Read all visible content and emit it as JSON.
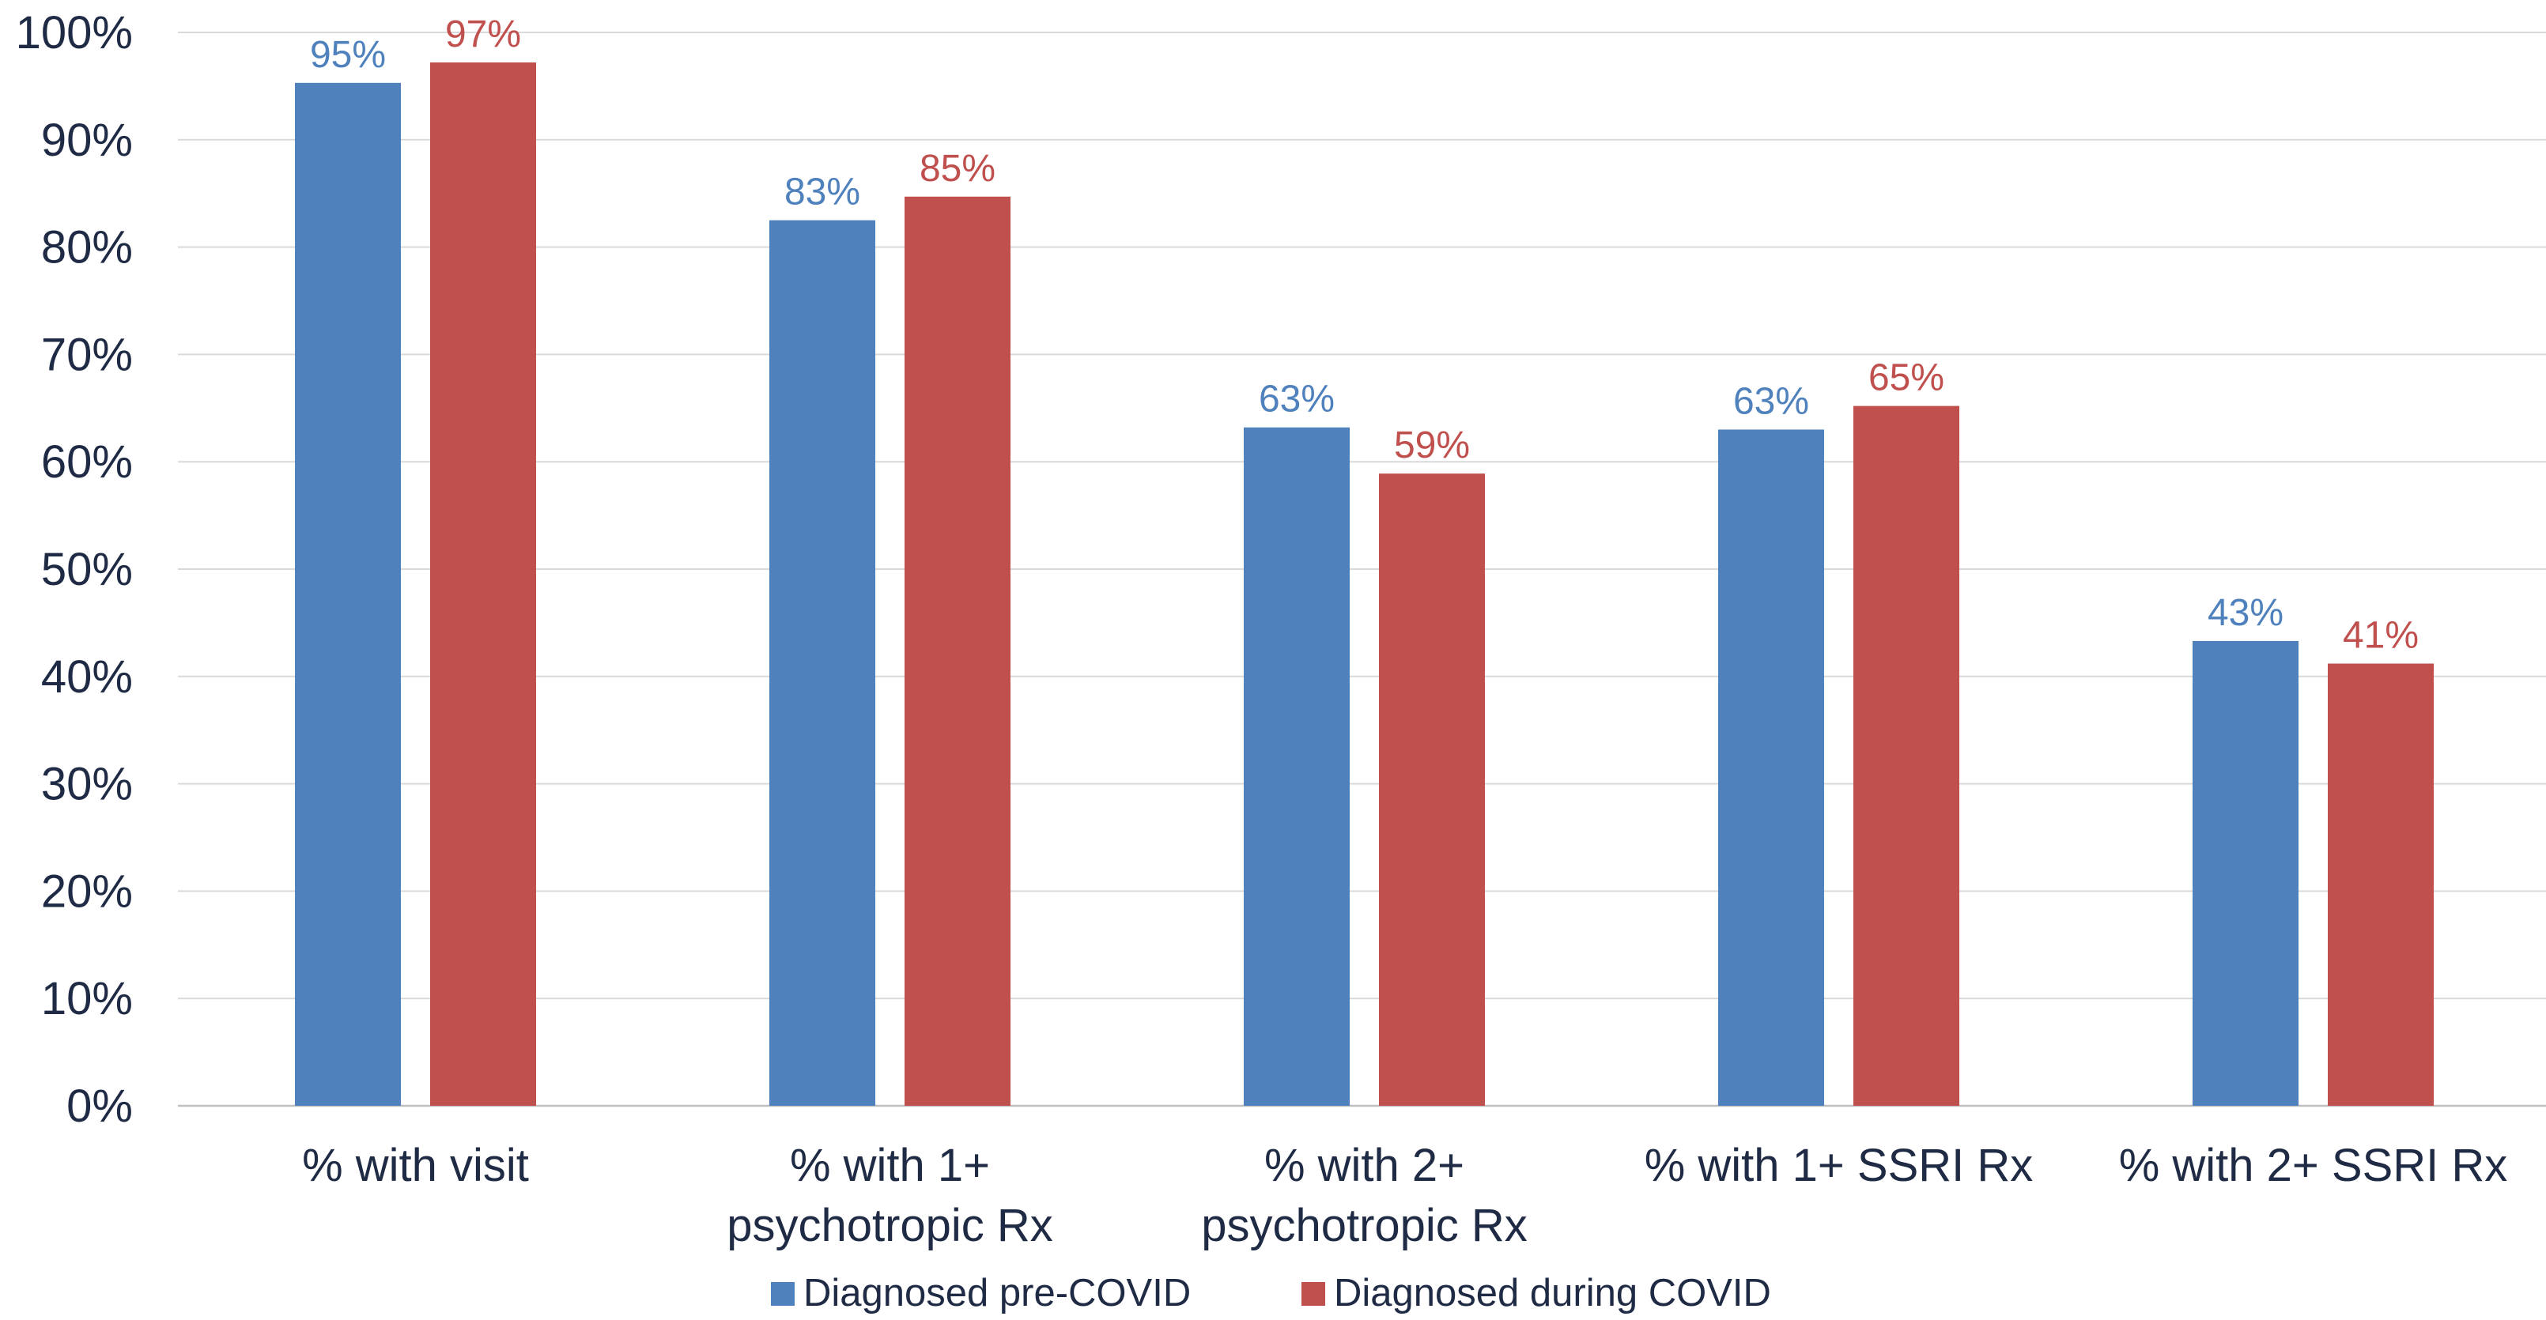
{
  "chart_data": {
    "type": "bar",
    "title": "",
    "xlabel": "",
    "ylabel": "",
    "ylim": [
      0,
      100
    ],
    "yticks": [
      "0%",
      "10%",
      "20%",
      "30%",
      "40%",
      "50%",
      "60%",
      "70%",
      "80%",
      "90%",
      "100%"
    ],
    "grid": true,
    "legend_position": "bottom",
    "categories": [
      [
        "% with visit"
      ],
      [
        "% with 1+",
        "psychotropic Rx"
      ],
      [
        "% with 2+",
        "psychotropic Rx"
      ],
      [
        "% with 1+ SSRI Rx"
      ],
      [
        "% with 2+ SSRI Rx"
      ]
    ],
    "series": [
      {
        "name": "Diagnosed pre-COVID",
        "color": "#4F81BD",
        "values": [
          95.3,
          82.5,
          63.2,
          63.0,
          43.3
        ],
        "labels": [
          "95%",
          "83%",
          "63%",
          "63%",
          "43%"
        ]
      },
      {
        "name": "Diagnosed during COVID",
        "color": "#C0504D",
        "values": [
          97.2,
          84.7,
          58.9,
          65.2,
          41.2
        ],
        "labels": [
          "97%",
          "85%",
          "59%",
          "65%",
          "41%"
        ]
      }
    ],
    "colors": {
      "axis_text": "#1F2A44",
      "gridline": "#D9D9D9"
    }
  }
}
